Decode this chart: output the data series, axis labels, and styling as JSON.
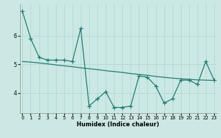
{
  "xlabel": "Humidex (Indice chaleur)",
  "bg_color": "#cce8e4",
  "grid_color": "#b0d8d2",
  "line_color": "#1a7a6e",
  "line1_x": [
    0,
    1,
    2,
    3,
    4,
    5,
    6,
    7,
    8,
    9,
    10,
    11,
    12,
    13,
    14,
    15,
    16,
    17,
    18,
    19,
    20,
    21,
    22,
    23
  ],
  "line1_y": [
    6.85,
    5.9,
    5.25,
    5.15,
    5.15,
    5.15,
    5.1,
    6.25,
    3.55,
    3.8,
    4.05,
    3.5,
    3.5,
    3.55,
    4.6,
    4.55,
    4.25,
    3.65,
    3.8,
    4.45,
    4.45,
    4.3,
    5.1,
    4.45
  ],
  "line2_x": [
    0,
    1,
    2,
    3,
    4,
    5,
    6,
    7,
    8,
    9,
    10,
    11,
    12,
    13,
    14,
    15,
    16,
    17,
    18,
    19,
    20,
    21,
    22,
    23
  ],
  "line2_y": [
    5.1,
    5.08,
    5.05,
    5.02,
    4.98,
    4.95,
    4.92,
    4.88,
    4.85,
    4.82,
    4.78,
    4.75,
    4.72,
    4.68,
    4.65,
    4.62,
    4.58,
    4.55,
    4.52,
    4.5,
    4.48,
    4.46,
    4.45,
    4.44
  ],
  "ylim": [
    3.3,
    7.1
  ],
  "yticks": [
    4,
    5,
    6
  ],
  "ytick_labels": [
    "4",
    "5",
    "6"
  ],
  "xticks": [
    0,
    1,
    2,
    3,
    4,
    5,
    6,
    7,
    8,
    9,
    10,
    11,
    12,
    13,
    14,
    15,
    16,
    17,
    18,
    19,
    20,
    21,
    22,
    23
  ],
  "xlim": [
    -0.3,
    23.3
  ],
  "marker": "+",
  "markersize": 4,
  "linewidth": 0.9
}
